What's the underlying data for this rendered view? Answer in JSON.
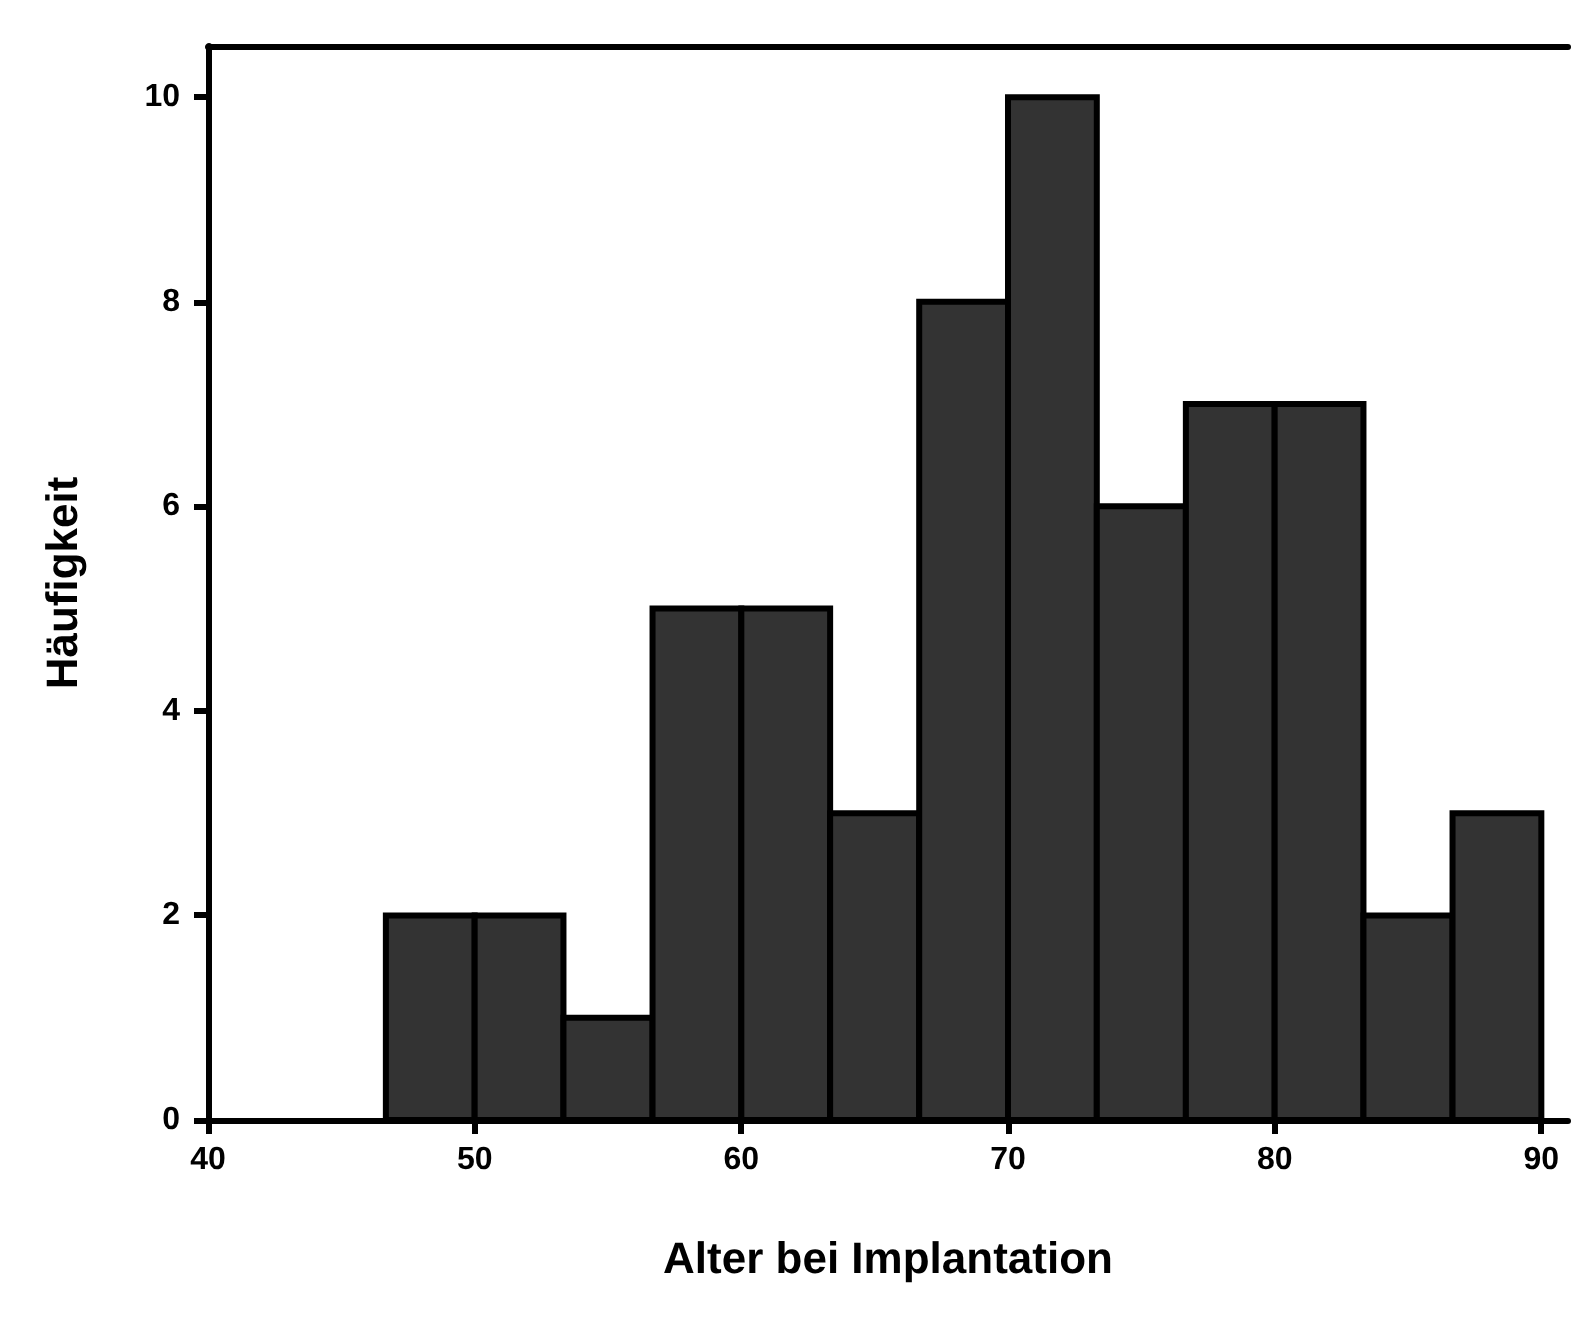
{
  "chart_data": {
    "type": "histogram",
    "xlabel": "Alter bei Implantation",
    "ylabel": "Häufigkeit",
    "bins": [
      46.67,
      50,
      53.33,
      56.67,
      60,
      63.33,
      66.67,
      70,
      73.33,
      76.67,
      80,
      83.33,
      86.67,
      90
    ],
    "values": [
      2,
      2,
      1,
      5,
      5,
      3,
      8,
      10,
      6,
      7,
      7,
      2,
      3
    ],
    "color": "#333333",
    "xlim": [
      40,
      91
    ],
    "xticks": [
      40,
      50,
      60,
      70,
      80,
      90
    ],
    "ylim": [
      0,
      10.5
    ],
    "yticks": [
      0,
      2,
      4,
      6,
      8,
      10
    ],
    "grid": false
  }
}
